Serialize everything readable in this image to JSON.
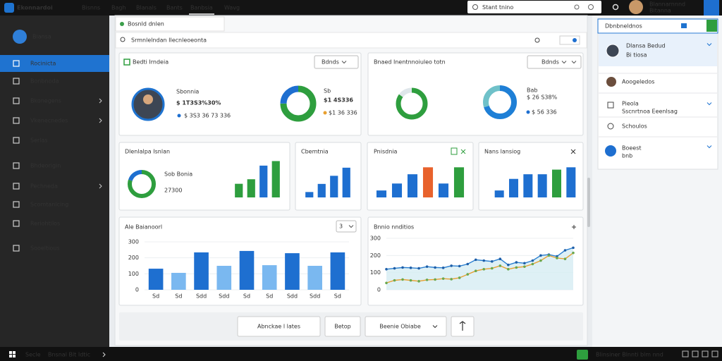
{
  "topbar": {
    "logo": "Ekonnardoi",
    "menu": [
      "Bisnns",
      "Bagh",
      "Blanals",
      "Bants",
      "Banbsia",
      "Wavg"
    ],
    "search": "Stant tnino",
    "user": "Blannarnnnd",
    "user_sub": "Bitanna"
  },
  "sidebar": {
    "title": "Biansa",
    "items": [
      "Rocinicta",
      "Bonbnoda",
      "Bkonegens",
      "Vkenecnedes",
      "Serlas",
      "Bhdeorigin",
      "Pechneda",
      "Scomtanlcing",
      "Reriohtilos",
      "Sooeltious"
    ]
  },
  "window": {
    "tab": "Bosnld dnlen",
    "search": "Srmnlelndan Ilecnleoeonta"
  },
  "cards": {
    "profile": {
      "name": "Sbonnia",
      "value": "$ 1T3S3%30%",
      "sub": "$ 3S3 36 73 336"
    },
    "stat1": {
      "label": "Sb",
      "value": "$1 4S336",
      "sub": "$1 36 336"
    },
    "stat2": {
      "label": "Bab",
      "value": "$ 26 S38%",
      "sub": "$ 56 336"
    },
    "kpi": {
      "label": "Sob Bonia",
      "value": "27300"
    },
    "dropdown1": "Bdnds",
    "dropdown2": "Bdnds",
    "dropdown3": "3"
  },
  "chart_data": [
    {
      "type": "pie",
      "title": "Bedti Irndeia",
      "values": [
        75,
        25
      ],
      "colors": [
        "#2e9e3e",
        "#1e6fd0"
      ]
    },
    {
      "type": "pie",
      "title": "Bnaed Inentnnoiuleo totn",
      "values": [
        85,
        15
      ],
      "colors": [
        "#2e9e3e",
        "#dfe6ea"
      ]
    },
    {
      "type": "pie",
      "values": [
        70,
        30
      ],
      "colors": [
        "#1e7fd6",
        "#6fc1c9"
      ]
    },
    {
      "type": "pie",
      "title": "Dlenlalpa Isnlan",
      "values": [
        80,
        20
      ],
      "colors": [
        "#2e9e3e",
        "#1e6fd0"
      ]
    },
    {
      "type": "bar",
      "values": [
        3,
        4,
        7,
        8
      ],
      "ylim": [
        0,
        9
      ],
      "colors": [
        "#2e9e3e",
        "#2e9e3e",
        "#1e6fd0",
        "#2e9e3e"
      ]
    },
    {
      "type": "bar",
      "title": "Cbemtnia",
      "values": [
        2,
        5,
        8,
        11
      ],
      "ylim": [
        0,
        12
      ],
      "colors": [
        "#1e6fd0",
        "#1e6fd0",
        "#1e6fd0",
        "#1e6fd0"
      ]
    },
    {
      "type": "bar",
      "title": "Pnisdnia",
      "values": [
        3,
        6,
        10,
        13,
        6,
        13
      ],
      "ylim": [
        0,
        14
      ],
      "colors": [
        "#1e6fd0",
        "#1e6fd0",
        "#1e6fd0",
        "#e8622c",
        "#1e6fd0",
        "#2e9e3e"
      ]
    },
    {
      "type": "bar",
      "title": "Nans lansiog",
      "values": [
        3,
        8,
        10,
        10,
        12,
        13
      ],
      "ylim": [
        0,
        14
      ],
      "colors": [
        "#1e6fd0",
        "#1e6fd0",
        "#1e6fd0",
        "#1e6fd0",
        "#2e9e3e",
        "#1e6fd0"
      ]
    },
    {
      "type": "bar",
      "title": "Ale Baianoorl",
      "categories": [
        "Sd",
        "Sd",
        "Sdd",
        "Sdd",
        "Sd",
        "Sd",
        "Sdd",
        "Sdd",
        "Sd"
      ],
      "values": [
        132,
        106,
        234,
        150,
        243,
        154,
        229,
        150,
        234
      ],
      "ylim": [
        0,
        300
      ],
      "yticks": [
        0,
        100,
        200,
        300
      ],
      "grid": true,
      "colors": [
        "#1e6fd0",
        "#7ab8f0",
        "#1e6fd0",
        "#7ab8f0",
        "#1e6fd0",
        "#7ab8f0",
        "#1e6fd0",
        "#7ab8f0",
        "#1e6fd0"
      ]
    },
    {
      "type": "line",
      "title": "Bnnio nnditios",
      "ylim": [
        0,
        300
      ],
      "yticks": [
        0,
        100,
        200,
        300
      ],
      "grid": true,
      "series": [
        {
          "color": "#2a7fd0",
          "fill": "#d6ecf2",
          "values": [
            120,
            125,
            130,
            128,
            125,
            135,
            130,
            128,
            140,
            138,
            150,
            175,
            170,
            165,
            180,
            145,
            160,
            155,
            170,
            200,
            205,
            195,
            230,
            245
          ]
        },
        {
          "color": "#e8a030",
          "values": [
            40,
            55,
            60,
            55,
            50,
            58,
            60,
            65,
            62,
            70,
            90,
            110,
            120,
            125,
            140,
            120,
            130,
            135,
            150,
            170,
            200,
            185,
            180,
            215
          ]
        }
      ]
    }
  ],
  "footer_buttons": [
    "Abnckae l lates",
    "Betop",
    "Beenie Obiabe"
  ],
  "right_panel": {
    "header": "Dbnbneldnos",
    "items": [
      {
        "title": "Dlansa Bedud",
        "sub": "Bi tiosa"
      },
      {
        "title": "Aoogeledos"
      },
      {
        "title": "Pieola",
        "sub": "Sscnrtnoa Eeenlsag"
      },
      {
        "title": "Schoulos"
      },
      {
        "title": "Boeest",
        "sub": "bnb"
      }
    ]
  },
  "statusbar": {
    "left": [
      "Secle",
      "Bnsnal Blt Idtic"
    ],
    "right": "Blinsiner Blnnti blm nnd"
  }
}
